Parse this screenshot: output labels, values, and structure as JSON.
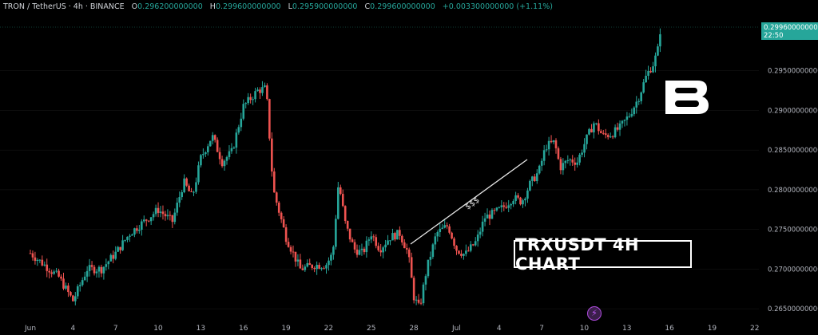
{
  "header": {
    "symbol": "TRON / TetherUS · 4h · BINANCE",
    "open_label": "O",
    "open": "0.296200000000",
    "high_label": "H",
    "high": "0.299600000000",
    "low_label": "L",
    "low": "0.295900000000",
    "close_label": "C",
    "close": "0.299600000000",
    "change": "+0.003300000000 (+1.11%)"
  },
  "price_tag": {
    "price": "0.299600000000",
    "time": "22:50"
  },
  "annotation": {
    "title": "TRXUSDT 4H CHART",
    "trendline_label": "$$$"
  },
  "colors": {
    "up": "#26a69a",
    "down": "#ef5350",
    "background": "#000000",
    "axis_text": "#b2b5be",
    "grid": "#1a1a1a"
  },
  "icons": {
    "logo": "brand-b-logo",
    "flash": "lightning-icon"
  },
  "chart_data": {
    "type": "candlestick",
    "ylim": [
      0.2635,
      0.3005
    ],
    "y_ticks": [
      "0.265000000000",
      "0.270000000000",
      "0.275000000000",
      "0.280000000000",
      "0.285000000000",
      "0.290000000000",
      "0.295000000000"
    ],
    "x_ticks": [
      "Jun",
      "4",
      "7",
      "10",
      "13",
      "16",
      "19",
      "22",
      "25",
      "28",
      "Jul",
      "4",
      "7",
      "10",
      "13",
      "16",
      "19",
      "22"
    ],
    "close_path": [
      [
        0,
        0.272
      ],
      [
        2,
        0.269
      ],
      [
        3,
        0.266
      ],
      [
        4,
        0.27
      ],
      [
        5,
        0.27
      ],
      [
        6,
        0.272
      ],
      [
        7,
        0.2745
      ],
      [
        8,
        0.276
      ],
      [
        9,
        0.2775
      ],
      [
        10,
        0.276
      ],
      [
        10.8,
        0.281
      ],
      [
        11.4,
        0.279
      ],
      [
        12,
        0.284
      ],
      [
        12.8,
        0.2868
      ],
      [
        13.5,
        0.2835
      ],
      [
        14.2,
        0.2848
      ],
      [
        15,
        0.2905
      ],
      [
        16,
        0.2925
      ],
      [
        16.6,
        0.2928
      ],
      [
        17.1,
        0.28
      ],
      [
        18,
        0.274
      ],
      [
        19,
        0.27
      ],
      [
        20,
        0.2705
      ],
      [
        20.8,
        0.2705
      ],
      [
        21.3,
        0.272
      ],
      [
        21.7,
        0.281
      ],
      [
        22.2,
        0.2755
      ],
      [
        22.8,
        0.2725
      ],
      [
        23.4,
        0.272
      ],
      [
        24,
        0.2745
      ],
      [
        24.6,
        0.2725
      ],
      [
        25.3,
        0.274
      ],
      [
        26,
        0.2745
      ],
      [
        26.6,
        0.272
      ],
      [
        27.0,
        0.2665
      ],
      [
        27.4,
        0.265
      ],
      [
        27.9,
        0.27
      ],
      [
        28.6,
        0.2745
      ],
      [
        29.4,
        0.2755
      ],
      [
        30,
        0.2725
      ],
      [
        30.6,
        0.2718
      ],
      [
        31.4,
        0.2735
      ],
      [
        32,
        0.2765
      ],
      [
        32.6,
        0.277
      ],
      [
        33.3,
        0.2778
      ],
      [
        34,
        0.279
      ],
      [
        34.6,
        0.2785
      ],
      [
        35.2,
        0.2808
      ],
      [
        35.8,
        0.2823
      ],
      [
        36.3,
        0.2855
      ],
      [
        36.9,
        0.286
      ],
      [
        37.3,
        0.2828
      ],
      [
        37.9,
        0.2838
      ],
      [
        38.5,
        0.2835
      ],
      [
        39.1,
        0.2862
      ],
      [
        39.7,
        0.2885
      ],
      [
        40.3,
        0.2868
      ],
      [
        40.9,
        0.287
      ],
      [
        41.5,
        0.2878
      ],
      [
        42.2,
        0.2895
      ],
      [
        42.8,
        0.2915
      ],
      [
        43.4,
        0.2945
      ],
      [
        43.9,
        0.296
      ],
      [
        44.5,
        0.2996
      ]
    ]
  }
}
